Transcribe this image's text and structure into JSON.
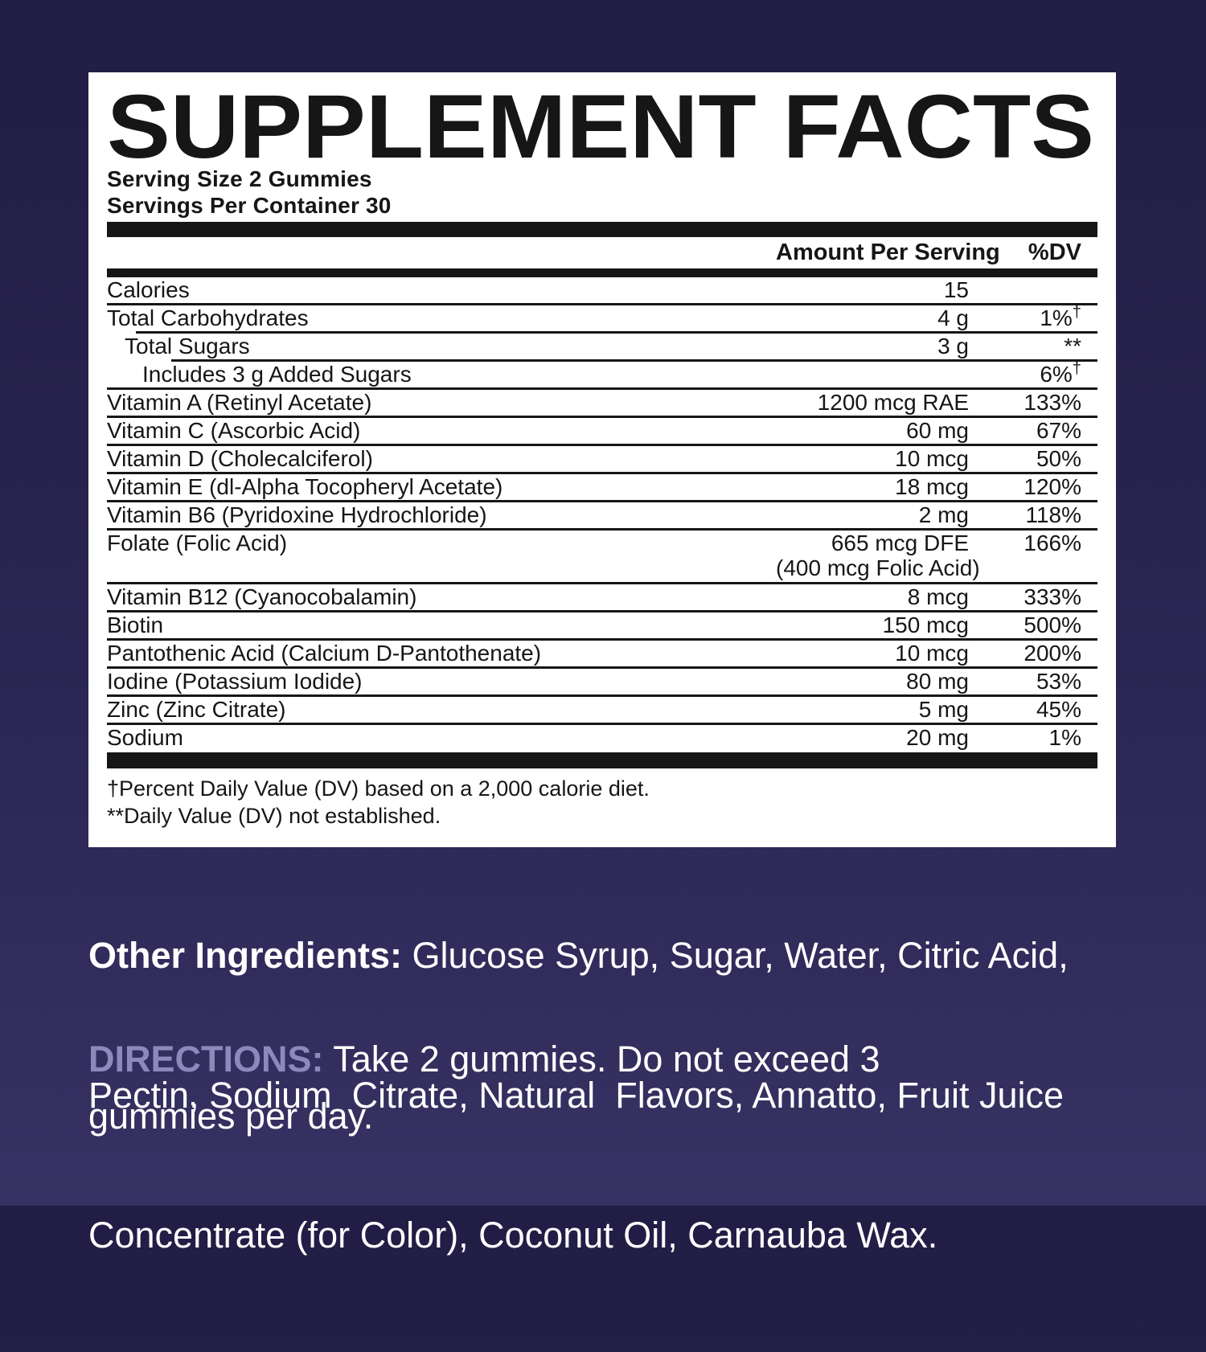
{
  "panel": {
    "title": "SUPPLEMENT FACTS",
    "serving_size": "Serving Size 2 Gummies",
    "servings_per_container": "Servings Per Container 30",
    "columns": {
      "amount": "Amount Per Serving",
      "dv": "%DV"
    },
    "rows": [
      {
        "name": "Calories",
        "amount": "15",
        "dv": "",
        "mark": "",
        "indent": 0,
        "rule": 0
      },
      {
        "name": "Total Carbohydrates",
        "amount": "4 g",
        "dv": "1%",
        "mark": "†",
        "indent": 0,
        "rule": 1
      },
      {
        "name": "Total Sugars",
        "amount": "3 g",
        "dv": "**",
        "mark": "",
        "indent": 1,
        "rule": 2
      },
      {
        "name": "Includes 3 g Added Sugars",
        "amount": "",
        "dv": "6%",
        "mark": "†",
        "indent": 2,
        "rule": 0
      },
      {
        "name": "Vitamin A (Retinyl Acetate)",
        "amount": "1200 mcg RAE",
        "dv": "133%",
        "mark": "",
        "indent": 0,
        "rule": 0
      },
      {
        "name": "Vitamin C (Ascorbic Acid)",
        "amount": "60 mg",
        "dv": "67%",
        "mark": "",
        "indent": 0,
        "rule": 0
      },
      {
        "name": "Vitamin D (Cholecalciferol)",
        "amount": "10 mcg",
        "dv": "50%",
        "mark": "",
        "indent": 0,
        "rule": 0
      },
      {
        "name": "Vitamin E (dl-Alpha Tocopheryl Acetate)",
        "amount": "18 mcg",
        "dv": "120%",
        "mark": "",
        "indent": 0,
        "rule": 0
      },
      {
        "name": "Vitamin B6 (Pyridoxine Hydrochloride)",
        "amount": "2 mg",
        "dv": "118%",
        "mark": "",
        "indent": 0,
        "rule": 0
      },
      {
        "name": "Folate (Folic Acid)",
        "amount": "665 mcg DFE",
        "amount2": "(400 mcg Folic Acid)",
        "dv": "166%",
        "mark": "",
        "indent": 0,
        "rule": 0
      },
      {
        "name": "Vitamin B12 (Cyanocobalamin)",
        "amount": "8 mcg",
        "dv": "333%",
        "mark": "",
        "indent": 0,
        "rule": 0
      },
      {
        "name": "Biotin",
        "amount": "150 mcg",
        "dv": "500%",
        "mark": "",
        "indent": 0,
        "rule": 0
      },
      {
        "name": "Pantothenic Acid (Calcium D-Pantothenate)",
        "amount": "10 mcg",
        "dv": "200%",
        "mark": "",
        "indent": 0,
        "rule": 0
      },
      {
        "name": "Iodine (Potassium Iodide)",
        "amount": "80 mg",
        "dv": "53%",
        "mark": "",
        "indent": 0,
        "rule": 0
      },
      {
        "name": "Zinc (Zinc Citrate)",
        "amount": "5 mg",
        "dv": "45%",
        "mark": "",
        "indent": 0,
        "rule": 0
      },
      {
        "name": "Sodium",
        "amount": "20 mg",
        "dv": "1%",
        "mark": "",
        "indent": 0,
        "rule": null
      }
    ],
    "footnotes": [
      "†Percent Daily Value (DV) based on a 2,000 calorie diet.",
      "**Daily Value (DV) not established."
    ]
  },
  "other_ingredients": {
    "label": "Other Ingredients:",
    "line1_rest": " Glucose Syrup, Sugar, Water, Citric Acid,",
    "line2": "Pectin, Sodium  Citrate, Natural  Flavors, Annatto, Fruit Juice",
    "line3": "Concentrate (for Color), Coconut Oil, Carnauba Wax."
  },
  "directions": {
    "label": "DIRECTIONS:",
    "line1_rest": " Take 2 gummies. Do not exceed 3",
    "line2": "gummies per day."
  },
  "colors": {
    "bg_top": "#211d45",
    "bg_bottom": "#373263",
    "panel": "#ffffff",
    "ink": "#161616",
    "text_light": "#ffffff",
    "directions_label": "#8e88bc"
  }
}
